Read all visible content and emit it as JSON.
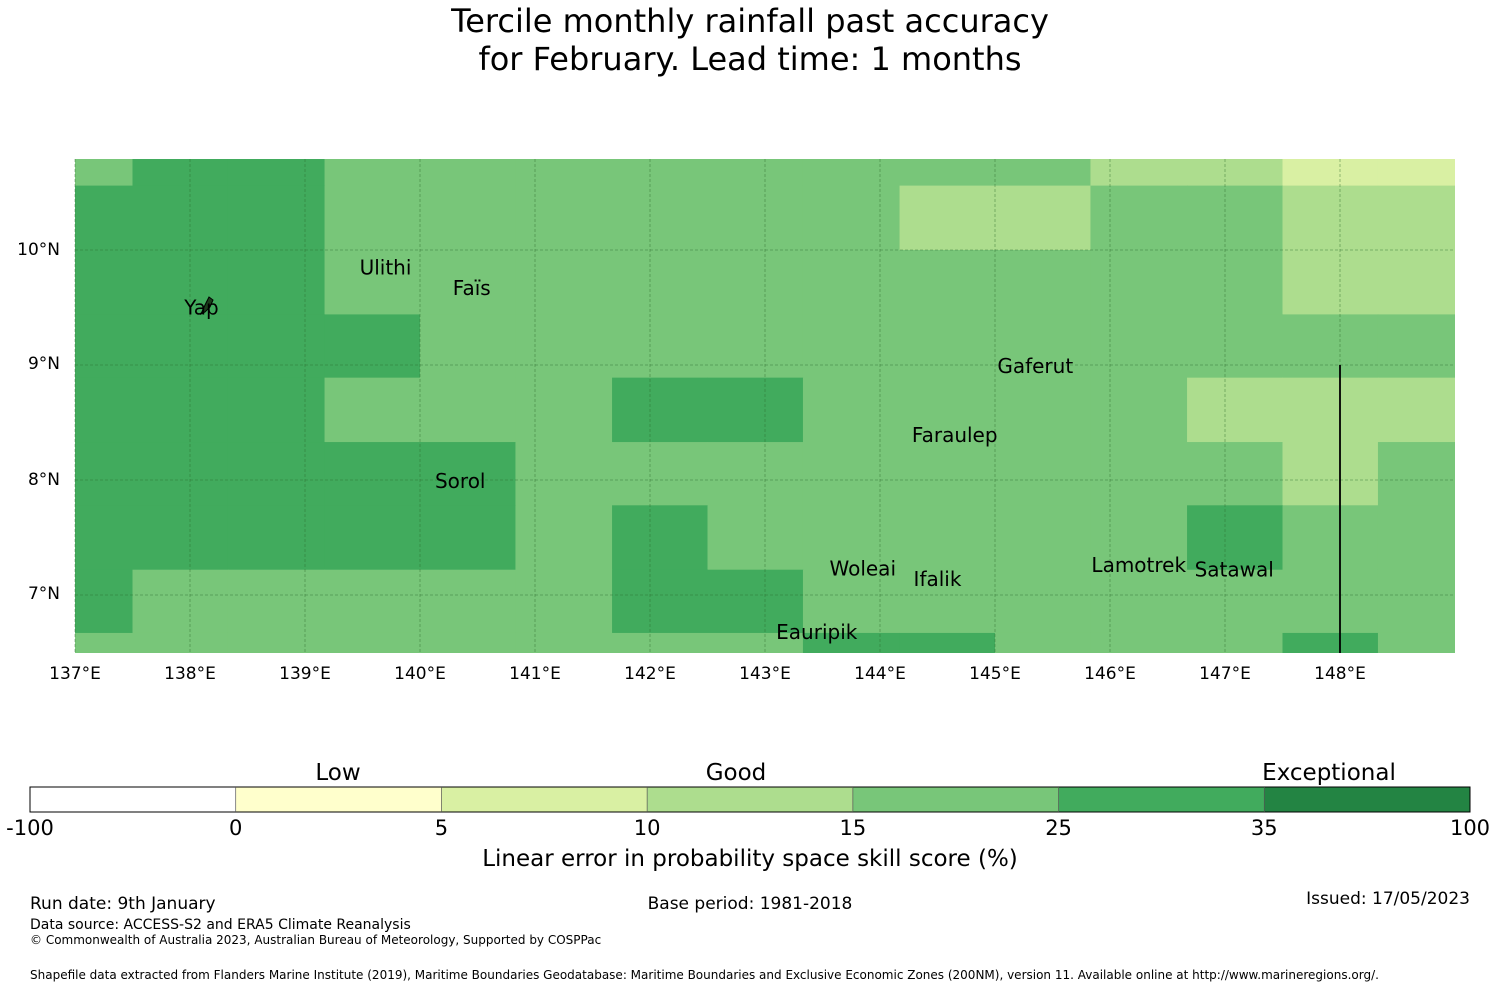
{
  "title": {
    "line1": "Tercile monthly rainfall past accuracy",
    "line2": "for February. Lead time: 1 months"
  },
  "colors": {
    "s1": "#ffffcc",
    "s2": "#d9f0a3",
    "s3": "#addd8e",
    "s4": "#78c679",
    "s5": "#41ab5d",
    "s6": "#238443",
    "neg": "#ffffff"
  },
  "map": {
    "lon_range": [
      137,
      149
    ],
    "lat_range": [
      6.5,
      10.8
    ],
    "lon_labels": [
      "137°E",
      "138°E",
      "139°E",
      "140°E",
      "141°E",
      "142°E",
      "143°E",
      "144°E",
      "145°E",
      "146°E",
      "147°E",
      "148°E"
    ],
    "lat_labels": [
      "10°N",
      "9°N",
      "8°N",
      "7°N"
    ],
    "grid": {
      "lon_edges": [
        136.5,
        137.5,
        138.33,
        139.17,
        140.0,
        140.83,
        141.67,
        142.5,
        143.33,
        144.17,
        145.0,
        145.83,
        146.67,
        147.5,
        148.33,
        149.17
      ],
      "lat_edges": [
        10.8,
        10.56,
        10.0,
        9.44,
        8.89,
        8.33,
        7.78,
        7.22,
        6.67,
        6.5
      ],
      "rows": [
        [
          "s4",
          "s5",
          "s5",
          "s4",
          "s4",
          "s4",
          "s4",
          "s4",
          "s4",
          "s4",
          "s4",
          "s3",
          "s3",
          "s2",
          "s2"
        ],
        [
          "s5",
          "s5",
          "s5",
          "s4",
          "s4",
          "s4",
          "s4",
          "s4",
          "s4",
          "s3",
          "s3",
          "s4",
          "s4",
          "s3",
          "s3"
        ],
        [
          "s5",
          "s5",
          "s5",
          "s4",
          "s4",
          "s4",
          "s4",
          "s4",
          "s4",
          "s4",
          "s4",
          "s4",
          "s4",
          "s3",
          "s3"
        ],
        [
          "s5",
          "s5",
          "s5",
          "s5",
          "s4",
          "s4",
          "s4",
          "s4",
          "s4",
          "s4",
          "s4",
          "s4",
          "s4",
          "s4",
          "s4"
        ],
        [
          "s5",
          "s5",
          "s5",
          "s4",
          "s4",
          "s4",
          "s5",
          "s5",
          "s4",
          "s4",
          "s4",
          "s4",
          "s3",
          "s3",
          "s3"
        ],
        [
          "s5",
          "s5",
          "s5",
          "s5",
          "s5",
          "s4",
          "s4",
          "s4",
          "s4",
          "s4",
          "s4",
          "s4",
          "s4",
          "s3",
          "s4"
        ],
        [
          "s5",
          "s5",
          "s5",
          "s5",
          "s5",
          "s4",
          "s5",
          "s4",
          "s4",
          "s4",
          "s4",
          "s4",
          "s5",
          "s4",
          "s4"
        ],
        [
          "s5",
          "s4",
          "s4",
          "s4",
          "s4",
          "s4",
          "s5",
          "s5",
          "s4",
          "s4",
          "s4",
          "s4",
          "s4",
          "s4",
          "s4"
        ],
        [
          "s4",
          "s4",
          "s4",
          "s4",
          "s4",
          "s4",
          "s4",
          "s4",
          "s5",
          "s5",
          "s4",
          "s4",
          "s4",
          "s5",
          "s4"
        ]
      ]
    },
    "places": [
      {
        "name": "Yap",
        "lon": 138.1,
        "lat": 9.5
      },
      {
        "name": "Ulithi",
        "lon": 139.7,
        "lat": 9.85
      },
      {
        "name": "Faïs",
        "lon": 140.45,
        "lat": 9.67
      },
      {
        "name": "Gaferut",
        "lon": 145.35,
        "lat": 8.99
      },
      {
        "name": "Faraulep",
        "lon": 144.65,
        "lat": 8.39
      },
      {
        "name": "Sorol",
        "lon": 140.35,
        "lat": 7.99
      },
      {
        "name": "Woleai",
        "lon": 143.85,
        "lat": 7.23
      },
      {
        "name": "Ifalik",
        "lon": 144.5,
        "lat": 7.14
      },
      {
        "name": "Lamotrek",
        "lon": 146.25,
        "lat": 7.26
      },
      {
        "name": "Satawal",
        "lon": 147.08,
        "lat": 7.22
      },
      {
        "name": "Eauripik",
        "lon": 143.45,
        "lat": 6.68
      }
    ],
    "boundary_line": {
      "lon": 148.0,
      "lat_from": 9.0,
      "lat_to": 6.5
    }
  },
  "legend": {
    "categories": [
      "Low",
      "Good",
      "Exceptional"
    ],
    "ticks": [
      "-100",
      "0",
      "5",
      "10",
      "15",
      "25",
      "35",
      "100"
    ],
    "label": "Linear error in probability space skill score (%)"
  },
  "footer": {
    "run_date": "Run date: 9th January",
    "base_period": "Base period: 1981-2018",
    "issued": "Issued: 17/05/2023",
    "data_source": "Data source: ACCESS-S2 and ERA5 Climate Reanalysis",
    "copyright": "© Commonwealth of Australia 2023, Australian Bureau of Meteorology, Supported by COSPPac",
    "shapefile": "Shapefile data extracted from Flanders Marine Institute (2019), Maritime Boundaries Geodatabase: Maritime Boundaries and Exclusive Economic Zones (200NM), version 11. Available online at http://www.marineregions.org/."
  }
}
